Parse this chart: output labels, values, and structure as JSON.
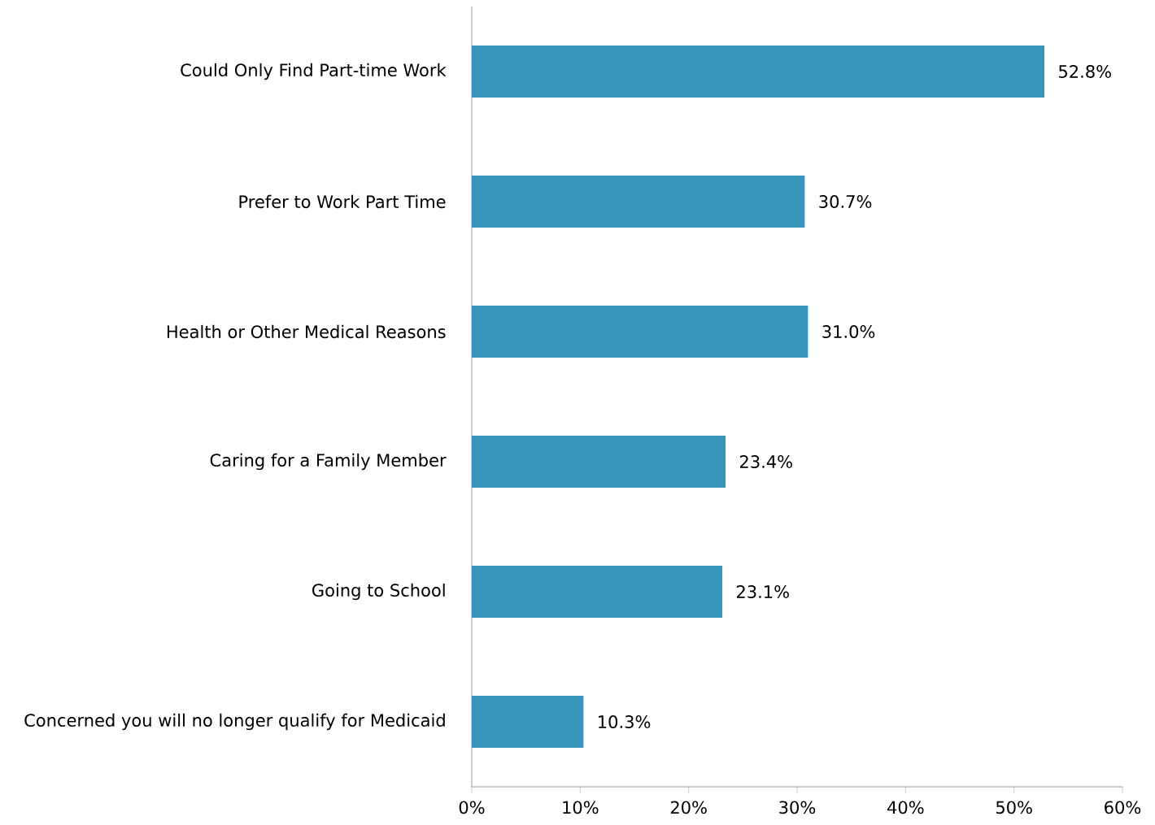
{
  "chart_data": {
    "type": "bar",
    "orientation": "horizontal",
    "categories": [
      "Could Only Find Part-time Work",
      "Prefer to Work Part Time",
      "Health or Other Medical Reasons",
      "Caring for a Family Member",
      "Going to School",
      "Concerned you will no longer qualify for Medicaid"
    ],
    "values": [
      52.8,
      30.7,
      31.0,
      23.4,
      23.1,
      10.3
    ],
    "value_labels": [
      "52.8%",
      "30.7%",
      "31.0%",
      "23.4%",
      "23.1%",
      "10.3%"
    ],
    "color": "#3795bb",
    "xlim": [
      0,
      60
    ],
    "xticks": [
      {
        "value": 0,
        "label": "0%"
      },
      {
        "value": 10,
        "label": "10%"
      },
      {
        "value": 20,
        "label": "20%"
      },
      {
        "value": 30,
        "label": "30%"
      },
      {
        "value": 40,
        "label": "40%"
      },
      {
        "value": 50,
        "label": "50%"
      },
      {
        "value": 60,
        "label": "60%"
      }
    ],
    "grid": false
  }
}
